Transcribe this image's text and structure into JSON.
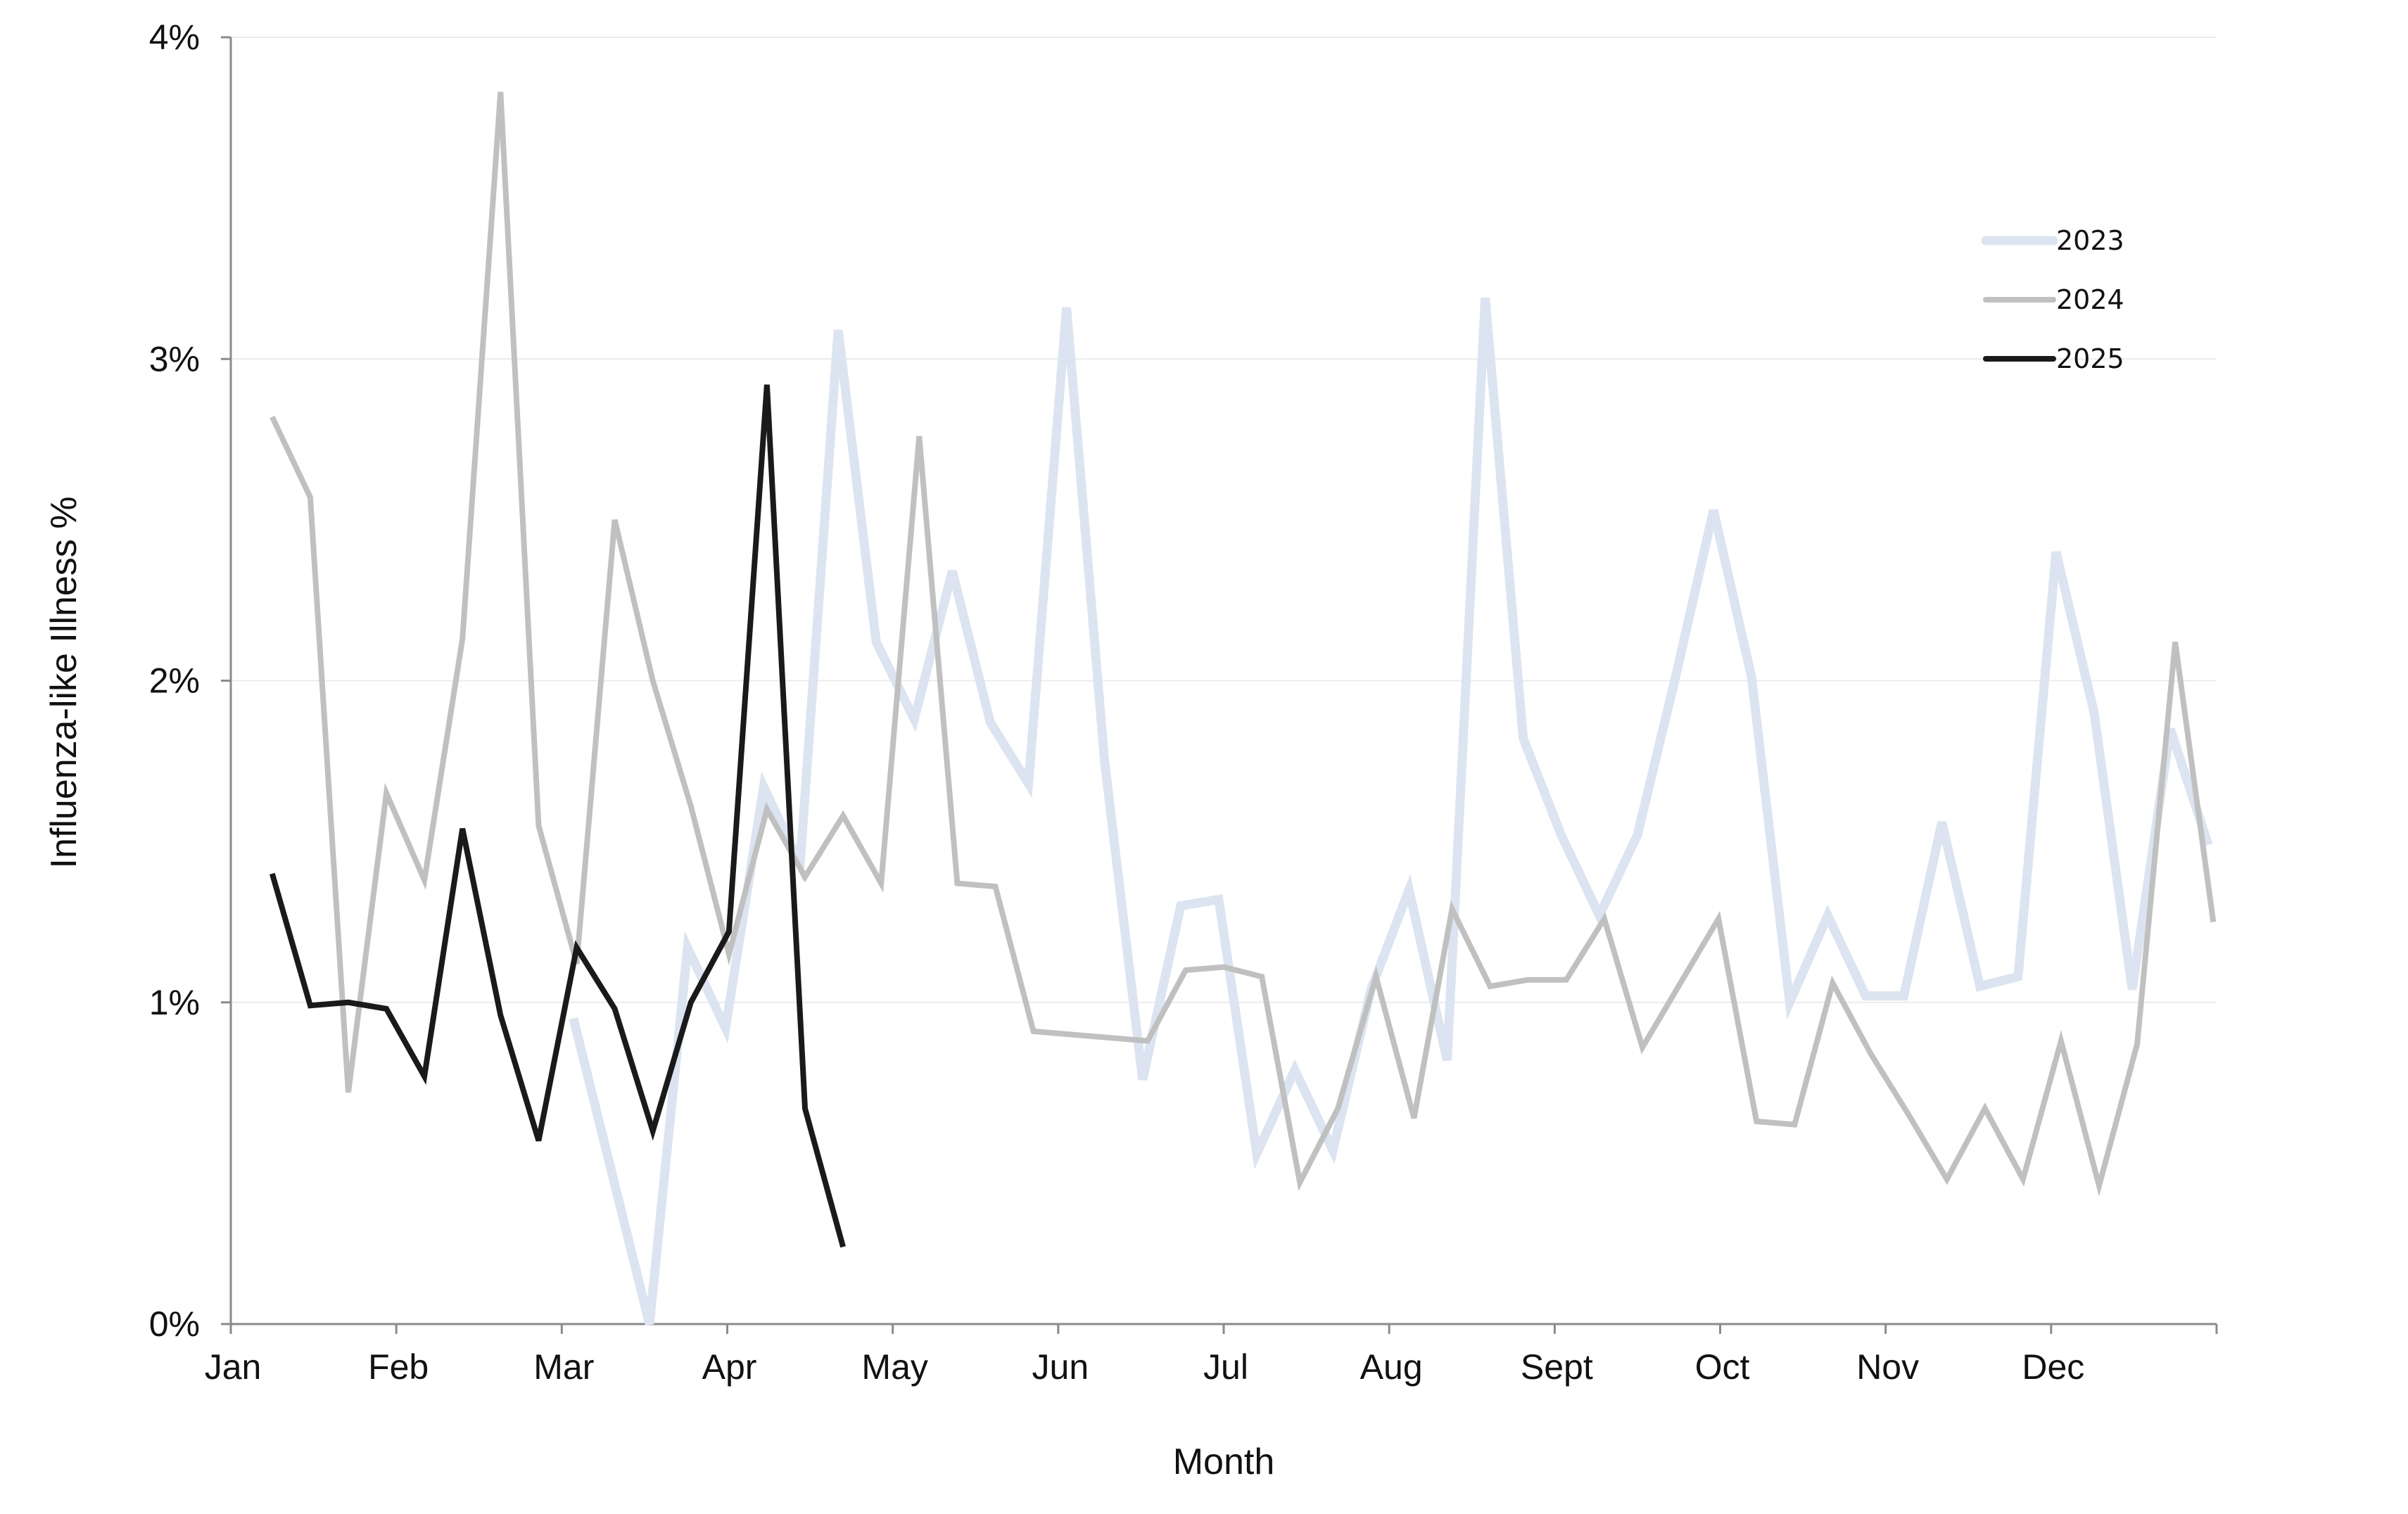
{
  "chart_data": {
    "type": "line",
    "xlabel": "Month",
    "ylabel": "Influenza-like Illness %",
    "x_tick_labels": [
      "Jan",
      "Feb",
      "Mar",
      "Apr",
      "May",
      "Jun",
      "Jul",
      "Aug",
      "Sept",
      "Oct",
      "Nov",
      "Dec"
    ],
    "y_tick_labels": [
      "0%",
      "1%",
      "2%",
      "3%",
      "4%"
    ],
    "y_ticks": [
      0,
      1,
      2,
      3,
      4
    ],
    "ylim": [
      0,
      4
    ],
    "xlim": [
      0,
      12
    ],
    "x_unit": "months elapsed since Jan 1",
    "grid": "horizontal",
    "legend_placement": "top-right",
    "series": [
      {
        "name": "2023",
        "color": "#dbe4f0",
        "x": [
          2.07,
          2.53,
          2.76,
          2.99,
          3.22,
          3.44,
          3.67,
          3.9,
          4.13,
          4.36,
          4.59,
          4.82,
          5.05,
          5.28,
          5.51,
          5.74,
          5.97,
          6.2,
          6.43,
          6.66,
          6.89,
          7.12,
          7.35,
          7.58,
          7.81,
          8.04,
          8.27,
          8.5,
          8.73,
          8.96,
          9.19,
          9.42,
          9.65,
          9.88,
          10.11,
          10.34,
          10.57,
          10.8,
          11.03,
          11.26,
          11.49,
          11.72,
          11.95
        ],
        "values": [
          0.95,
          0.0,
          1.17,
          0.92,
          1.67,
          1.43,
          3.09,
          2.12,
          1.88,
          2.34,
          1.87,
          1.68,
          3.16,
          1.75,
          0.76,
          1.3,
          1.32,
          0.53,
          0.79,
          0.54,
          1.04,
          1.35,
          0.82,
          3.19,
          1.82,
          1.52,
          1.27,
          1.52,
          2.01,
          2.53,
          2.01,
          1.0,
          1.27,
          1.02,
          1.02,
          1.56,
          1.05,
          1.08,
          2.4,
          1.9,
          1.04,
          1.85,
          1.49
        ]
      },
      {
        "name": "2024",
        "color": "#c0c0c0",
        "x": [
          0.25,
          0.48,
          0.71,
          0.94,
          1.17,
          1.4,
          1.63,
          1.86,
          2.09,
          2.32,
          2.55,
          2.78,
          3.01,
          3.24,
          3.47,
          3.7,
          3.93,
          4.16,
          4.39,
          4.62,
          4.85,
          5.08,
          5.31,
          5.54,
          5.77,
          6.0,
          6.23,
          6.46,
          6.69,
          6.92,
          7.15,
          7.38,
          7.61,
          7.84,
          8.07,
          8.3,
          8.53,
          8.76,
          8.99,
          9.22,
          9.45,
          9.68,
          9.91,
          10.14,
          10.37,
          10.6,
          10.83,
          11.06,
          11.29,
          11.52,
          11.75,
          11.98
        ],
        "values": [
          2.82,
          2.57,
          0.72,
          1.65,
          1.38,
          2.13,
          3.83,
          1.55,
          1.12,
          2.5,
          2.0,
          1.61,
          1.15,
          1.6,
          1.39,
          1.58,
          1.37,
          2.76,
          1.37,
          1.36,
          0.91,
          0.9,
          0.89,
          0.88,
          1.1,
          1.11,
          1.08,
          0.44,
          0.67,
          1.08,
          0.64,
          1.29,
          1.05,
          1.07,
          1.07,
          1.26,
          0.86,
          1.06,
          1.26,
          0.63,
          0.62,
          1.06,
          0.84,
          0.65,
          0.45,
          0.67,
          0.45,
          0.88,
          0.43,
          0.87,
          2.12,
          1.25
        ]
      },
      {
        "name": "2025",
        "color": "#1a1a1a",
        "x": [
          0.25,
          0.48,
          0.71,
          0.94,
          1.17,
          1.4,
          1.63,
          1.86,
          2.09,
          2.32,
          2.55,
          2.78,
          3.01,
          3.24,
          3.47,
          3.7
        ],
        "values": [
          1.4,
          0.99,
          1.0,
          0.98,
          0.77,
          1.54,
          0.96,
          0.57,
          1.17,
          0.98,
          0.6,
          1.0,
          1.22,
          2.92,
          0.67,
          0.24
        ]
      }
    ]
  }
}
